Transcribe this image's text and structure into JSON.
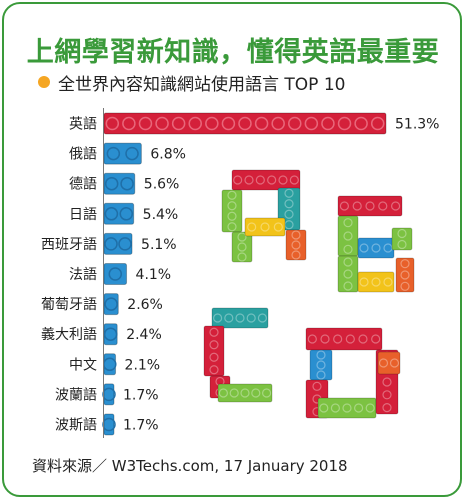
{
  "header": {
    "title": "上網學習新知識，懂得英語最重要",
    "subtitle": "全世界內容知識網站使用語言 TOP 10"
  },
  "source": "資料來源／ W3Techs.com, 17 January 2018",
  "colors": {
    "frame": "#3a9a3a",
    "title": "#3a9a3a",
    "bullet": "#f5a623",
    "bar_top": "#d4203a",
    "bar_other": "#2a8fd0",
    "stud_top": "#e9667a",
    "stud_other": "#1f6fa8"
  },
  "chart_data": {
    "type": "bar",
    "orientation": "horizontal",
    "title": "全世界內容知識網站使用語言 TOP 10",
    "categories": [
      "英語",
      "俄語",
      "德語",
      "日語",
      "西班牙語",
      "法語",
      "葡萄牙語",
      "義大利語",
      "中文",
      "波蘭語",
      "波斯語"
    ],
    "values": [
      51.3,
      6.8,
      5.6,
      5.4,
      5.1,
      4.1,
      2.6,
      2.4,
      2.1,
      1.7,
      1.7
    ],
    "value_labels": [
      "51.3%",
      "6.8%",
      "5.6%",
      "5.4%",
      "5.1%",
      "4.1%",
      "2.6%",
      "2.4%",
      "2.1%",
      "1.7%",
      "1.7%"
    ],
    "unit": "%",
    "grid": false,
    "legend": "none"
  },
  "decoration": {
    "letters": [
      "A",
      "B",
      "C",
      "D"
    ],
    "style": "lego-bricks"
  }
}
